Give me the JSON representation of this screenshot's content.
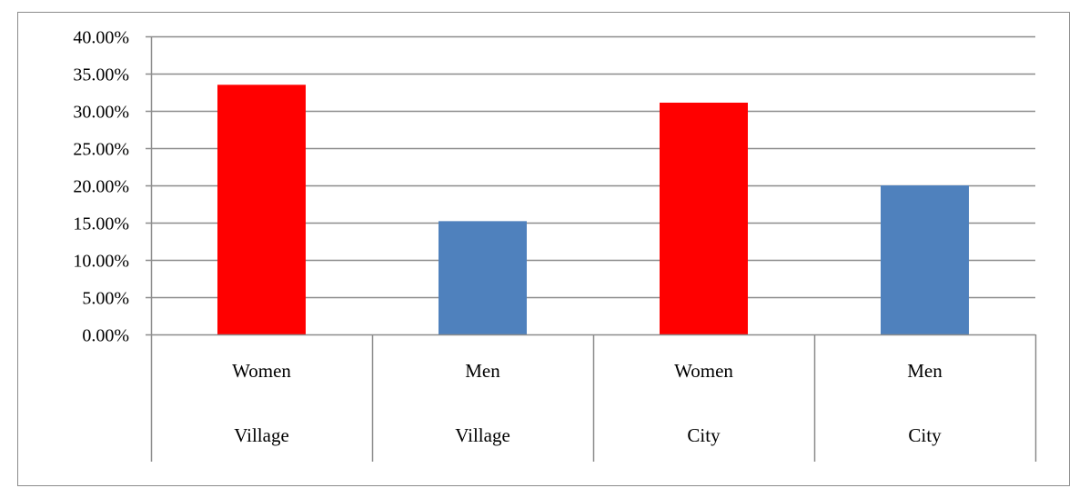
{
  "chart_data": {
    "type": "bar",
    "title": "",
    "xlabel": "",
    "ylabel": "",
    "ylim": [
      0,
      0.4
    ],
    "yticks": [
      0,
      0.05,
      0.1,
      0.15,
      0.2,
      0.25,
      0.3,
      0.35,
      0.4
    ],
    "ytick_labels": [
      "0.00%",
      "5.00%",
      "10.00%",
      "15.00%",
      "20.00%",
      "25.00%",
      "30.00%",
      "35.00%",
      "40.00%"
    ],
    "grid": true,
    "legend": "none",
    "categories": [
      {
        "label": "Women",
        "group": "Village"
      },
      {
        "label": "Men",
        "group": "Village"
      },
      {
        "label": "Women",
        "group": "City"
      },
      {
        "label": "Men",
        "group": "City"
      }
    ],
    "values": [
      0.335,
      0.152,
      0.311,
      0.2
    ],
    "colors": [
      "#ff0000",
      "#4f81bd",
      "#ff0000",
      "#4f81bd"
    ],
    "gridline_color": "#8c8c8c"
  }
}
